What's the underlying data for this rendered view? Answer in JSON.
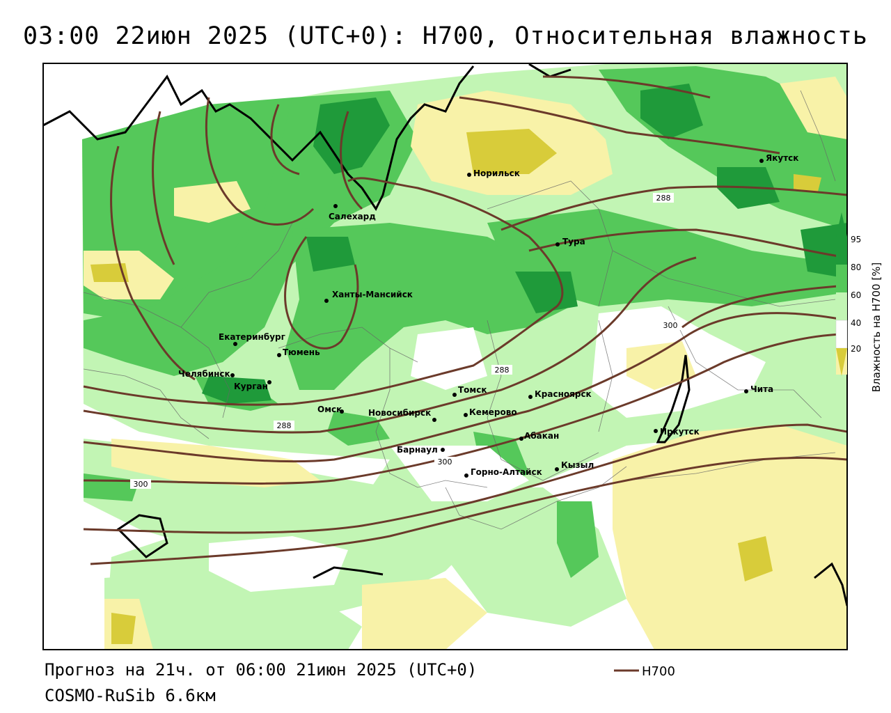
{
  "title": "03:00 22июн 2025 (UTC+0): H700, Относительная влажность",
  "footer": {
    "forecast": "Прогноз на 21ч. от 06:00 21июн 2025 (UTC+0)",
    "model": "COSMO-RuSib 6.6км"
  },
  "legend": {
    "line_label": "H700",
    "line_color": "#6b3a2a"
  },
  "colorbar": {
    "title": "Влажность на H700 [%]",
    "ticks": [
      "95",
      "80",
      "60",
      "40",
      "20"
    ],
    "colors": {
      "dry_strong": "#d8cc3a",
      "dry": "#f8f2a8",
      "mid": "#ffffff",
      "moist": "#c2f5b4",
      "wet": "#55c85a",
      "very_wet": "#1f9a3a"
    }
  },
  "cities": [
    {
      "name": "Якутск"
    },
    {
      "name": "Норильск"
    },
    {
      "name": "Салехард"
    },
    {
      "name": "Тура"
    },
    {
      "name": "Ханты-Мансийск"
    },
    {
      "name": "Екатеринбург"
    },
    {
      "name": "Тюмень"
    },
    {
      "name": "Челябинск"
    },
    {
      "name": "Курган"
    },
    {
      "name": "Омск"
    },
    {
      "name": "Томск"
    },
    {
      "name": "Красноярск"
    },
    {
      "name": "Новосибирск"
    },
    {
      "name": "Кемерово"
    },
    {
      "name": "Абакан"
    },
    {
      "name": "Барнаул"
    },
    {
      "name": "Горно-Алтайск"
    },
    {
      "name": "Кызыл"
    },
    {
      "name": "Иркутск"
    },
    {
      "name": "Чита"
    }
  ],
  "contour_labels": [
    "288",
    "300",
    "288",
    "288",
    "300",
    "300"
  ]
}
